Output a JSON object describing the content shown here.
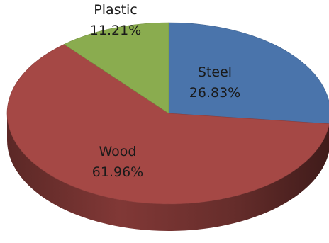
{
  "chart_data": {
    "type": "pie",
    "style": "3d",
    "title": "",
    "start_angle_deg": 90,
    "direction": "clockwise",
    "slices": [
      {
        "name": "Steel",
        "value": 26.83,
        "label": "26.83%",
        "color": "#4a74ab"
      },
      {
        "name": "Wood",
        "value": 61.96,
        "label": "61.96%",
        "color": "#a54845"
      },
      {
        "name": "Plastic",
        "value": 11.21,
        "label": "11.21%",
        "color": "#8aac4f"
      }
    ]
  }
}
